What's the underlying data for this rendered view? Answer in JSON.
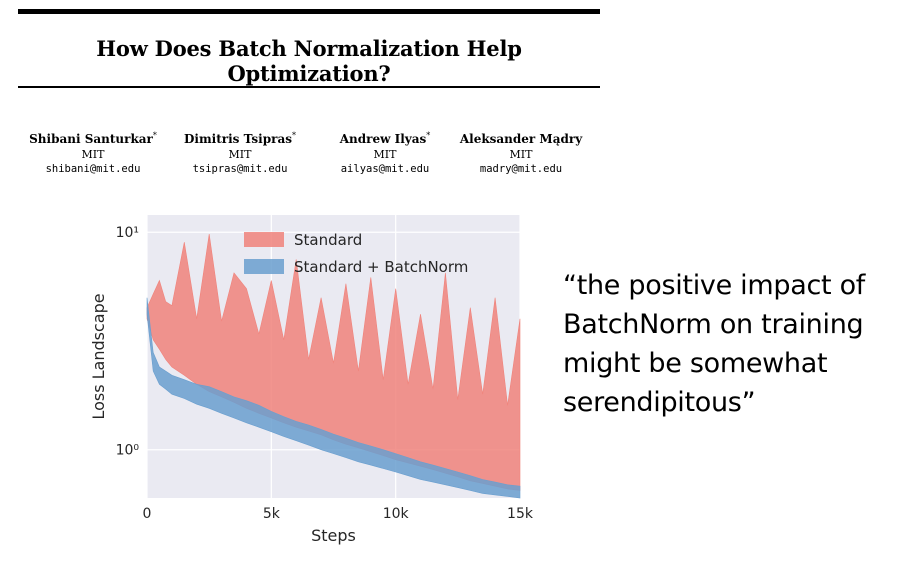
{
  "paper": {
    "title": "How Does Batch Normalization Help Optimization?",
    "authors": [
      {
        "name": "Shibani Santurkar",
        "mark": "*",
        "affiliation": "MIT",
        "email": "shibani@mit.edu"
      },
      {
        "name": "Dimitris Tsipras",
        "mark": "*",
        "affiliation": "MIT",
        "email": "tsipras@mit.edu"
      },
      {
        "name": "Andrew Ilyas",
        "mark": "*",
        "affiliation": "MIT",
        "email": "ailyas@mit.edu"
      },
      {
        "name": "Aleksander Mądry",
        "mark": "",
        "affiliation": "MIT",
        "email": "madry@mit.edu"
      }
    ]
  },
  "quote": "“the positive impact of BatchNorm on training might be somewhat serendipitous”",
  "chart_data": {
    "type": "area",
    "title": "",
    "xlabel": "Steps",
    "ylabel": "Loss Landscape",
    "xlim": [
      0,
      15000
    ],
    "ylim": [
      0.6,
      12
    ],
    "yscale": "log",
    "xticks": [
      0,
      5000,
      10000,
      15000
    ],
    "xtick_labels": [
      "0",
      "5k",
      "10k",
      "15k"
    ],
    "yticks": [
      1,
      10
    ],
    "ytick_labels": [
      "10⁰",
      "10¹"
    ],
    "grid": true,
    "legend_position": "top-center",
    "background": "#eaeaf2",
    "series": [
      {
        "name": "Standard",
        "color": "#f0837b",
        "x": [
          0,
          250,
          500,
          750,
          1000,
          1500,
          2000,
          2500,
          3000,
          3500,
          4000,
          4500,
          5000,
          5500,
          6000,
          6500,
          7000,
          7500,
          8000,
          8500,
          9000,
          9500,
          10000,
          10500,
          11000,
          11500,
          12000,
          12500,
          13000,
          13500,
          14000,
          14500,
          15000
        ],
        "upper": [
          4.5,
          5.2,
          6.0,
          4.8,
          4.6,
          9.0,
          4.0,
          9.8,
          3.9,
          6.5,
          5.5,
          3.4,
          6.0,
          3.2,
          7.5,
          2.6,
          5.0,
          2.5,
          5.8,
          2.3,
          6.2,
          2.1,
          5.5,
          2.0,
          4.2,
          1.9,
          6.5,
          1.7,
          4.5,
          1.8,
          5.0,
          1.6,
          4.0
        ],
        "lower": [
          4.0,
          3.2,
          2.9,
          2.6,
          2.4,
          2.2,
          2.0,
          1.85,
          1.75,
          1.65,
          1.55,
          1.47,
          1.4,
          1.33,
          1.27,
          1.22,
          1.17,
          1.11,
          1.06,
          1.02,
          0.98,
          0.94,
          0.9,
          0.87,
          0.84,
          0.81,
          0.78,
          0.75,
          0.72,
          0.7,
          0.68,
          0.66,
          0.65
        ]
      },
      {
        "name": "Standard + BatchNorm",
        "color": "#6a9fcf",
        "x": [
          0,
          250,
          500,
          750,
          1000,
          1500,
          2000,
          2500,
          3000,
          3500,
          4000,
          4500,
          5000,
          5500,
          6000,
          6500,
          7000,
          7500,
          8000,
          8500,
          9000,
          9500,
          10000,
          10500,
          11000,
          11500,
          12000,
          12500,
          13000,
          13500,
          14000,
          14500,
          15000
        ],
        "upper": [
          5.0,
          2.8,
          2.4,
          2.3,
          2.2,
          2.1,
          2.0,
          1.95,
          1.85,
          1.75,
          1.68,
          1.6,
          1.5,
          1.42,
          1.35,
          1.3,
          1.24,
          1.18,
          1.13,
          1.08,
          1.04,
          1.0,
          0.96,
          0.92,
          0.88,
          0.85,
          0.82,
          0.79,
          0.76,
          0.73,
          0.71,
          0.69,
          0.68
        ],
        "lower": [
          4.2,
          2.3,
          2.0,
          1.9,
          1.8,
          1.72,
          1.62,
          1.55,
          1.47,
          1.4,
          1.33,
          1.27,
          1.21,
          1.15,
          1.1,
          1.05,
          1.0,
          0.96,
          0.92,
          0.88,
          0.85,
          0.82,
          0.79,
          0.76,
          0.73,
          0.71,
          0.69,
          0.67,
          0.65,
          0.63,
          0.62,
          0.61,
          0.6
        ]
      }
    ]
  }
}
